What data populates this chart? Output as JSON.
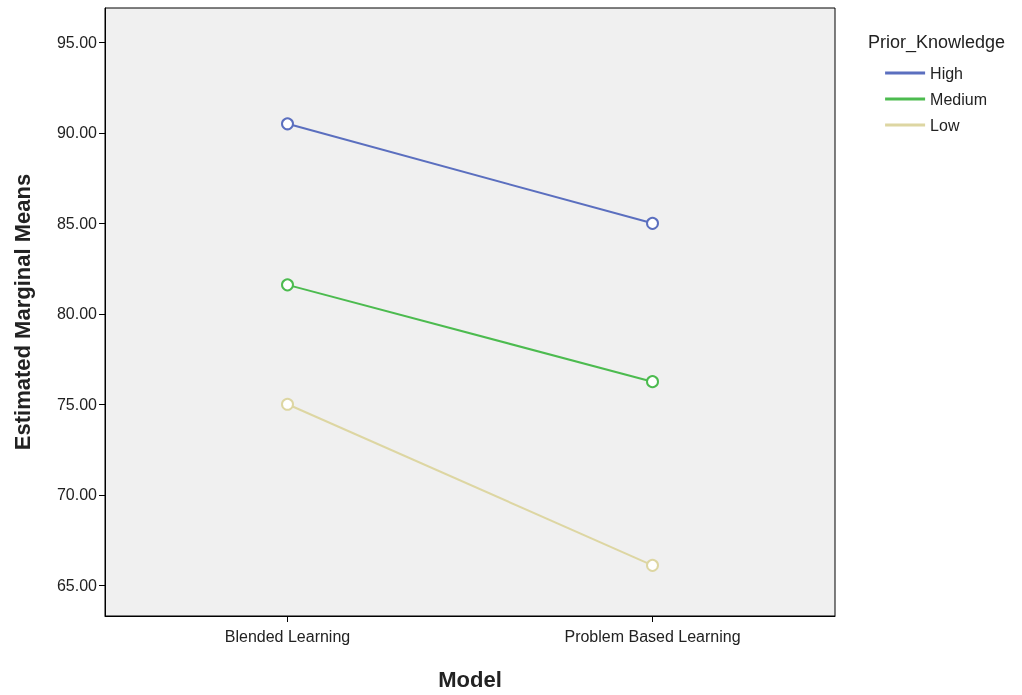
{
  "chart_data": {
    "type": "line",
    "xlabel": "Model",
    "ylabel": "Estimated Marginal Means",
    "legend_title": "Prior_Knowledge",
    "categories": [
      "Blended Learning",
      "Problem Based Learning"
    ],
    "series": [
      {
        "name": "High",
        "color": "#5b6fbf",
        "values": [
          90.5,
          85.0
        ]
      },
      {
        "name": "Medium",
        "color": "#4cbb4f",
        "values": [
          81.6,
          76.25
        ]
      },
      {
        "name": "Low",
        "color": "#ddd6a2",
        "values": [
          75.0,
          66.1
        ]
      }
    ],
    "ylim": [
      63.3,
      96.9
    ],
    "yticks": [
      {
        "value": 65,
        "label": "65.00"
      },
      {
        "value": 70,
        "label": "70.00"
      },
      {
        "value": 75,
        "label": "75.00"
      },
      {
        "value": 80,
        "label": "80.00"
      },
      {
        "value": 85,
        "label": "85.00"
      },
      {
        "value": 90,
        "label": "90.00"
      },
      {
        "value": 95,
        "label": "95.00"
      }
    ],
    "grid": false,
    "legend": "top right",
    "marker": "circle",
    "line_style": "solid"
  }
}
